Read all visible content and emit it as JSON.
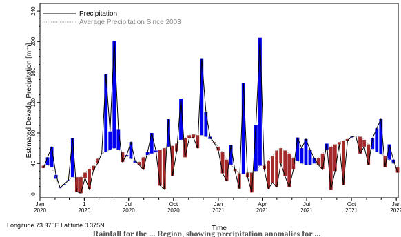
{
  "chart_data": {
    "type": "bar",
    "ylabel": "Estimated Dekadal Precipitation [mm]",
    "xlabel": "Time",
    "ylim": [
      -5,
      250
    ],
    "yticks": [
      0,
      40,
      80,
      120,
      160,
      200,
      240
    ],
    "x_range": [
      "2020-01-01",
      "2022-01-05"
    ],
    "x_tick_labels": [
      {
        "date": "2020-01-01",
        "day": "Jan",
        "year": "2020"
      },
      {
        "date": "2020-04-01",
        "day": "1",
        "year": "2020"
      },
      {
        "date": "2020-07-01",
        "day": "Jul",
        "year": "2020"
      },
      {
        "date": "2020-10-01",
        "day": "Oct",
        "year": "2020"
      },
      {
        "date": "2021-01-01",
        "day": "Jan",
        "year": "2021"
      },
      {
        "date": "2021-04-01",
        "day": "Apr",
        "year": "2021"
      },
      {
        "date": "2021-07-01",
        "day": "Jul",
        "year": "2021"
      },
      {
        "date": "2021-10-01",
        "day": "Oct",
        "year": "2021"
      },
      {
        "date": "2022-01-01",
        "day": "Jan",
        "year": "2022"
      }
    ],
    "legend": {
      "position": "top-left",
      "items": [
        {
          "label": "Precipitation",
          "style": "solid"
        },
        {
          "label": "Average Precipitation Since 2003",
          "style": "dotted"
        }
      ]
    },
    "colors": {
      "above_average": "#0000ee",
      "below_average": "#a52a2a",
      "precip_line": "#000000",
      "average_line": "#888888"
    },
    "grid": false,
    "precipitation": [
      34,
      48,
      62,
      25,
      8,
      13,
      18,
      73,
      3,
      1,
      21,
      6,
      31,
      40,
      53,
      157,
      82,
      201,
      85,
      42,
      51,
      68,
      44,
      38,
      32,
      55,
      80,
      57,
      11,
      6,
      98,
      24,
      56,
      125,
      48,
      73,
      74,
      60,
      178,
      108,
      75,
      67,
      57,
      27,
      17,
      64,
      30,
      7,
      146,
      22,
      2,
      90,
      205,
      32,
      7,
      15,
      9,
      40,
      23,
      9,
      32,
      74,
      60,
      72,
      58,
      47,
      38,
      32,
      66,
      5,
      30,
      65,
      12,
      70,
      75,
      76,
      53,
      62,
      38,
      73,
      86,
      98,
      35,
      65,
      45,
      28
    ],
    "average": [
      37,
      38,
      35,
      20,
      8,
      12,
      18,
      22,
      22,
      22,
      28,
      33,
      37,
      46,
      53,
      55,
      58,
      60,
      58,
      55,
      50,
      46,
      41,
      42,
      48,
      51,
      53,
      55,
      58,
      60,
      62,
      63,
      66,
      71,
      73,
      77,
      78,
      77,
      77,
      75,
      72,
      68,
      62,
      55,
      45,
      38,
      33,
      27,
      26,
      28,
      28,
      30,
      37,
      37,
      44,
      50,
      57,
      60,
      57,
      53,
      47,
      43,
      40,
      38,
      38,
      40,
      47,
      53,
      58,
      62,
      65,
      68,
      70,
      72,
      74,
      76,
      75,
      71,
      65,
      59,
      55,
      52,
      50,
      45,
      40,
      35
    ],
    "footer": "Longitude 73.375E Latitude 0.375N",
    "caption": "Rainfall for the ... Region, showing precipitation anomalies for ..."
  }
}
